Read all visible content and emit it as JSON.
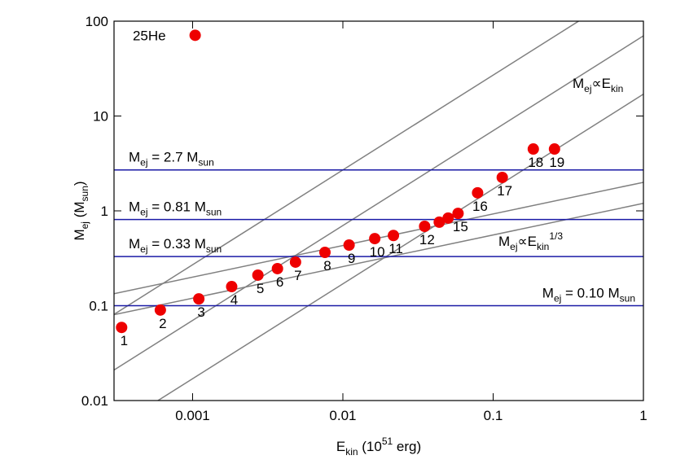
{
  "chart_data": {
    "type": "scatter",
    "log_x": true,
    "log_y": true,
    "xlim": [
      0.0003,
      1
    ],
    "ylim": [
      0.01,
      100
    ],
    "xticks": [
      0.001,
      0.01,
      0.1,
      1
    ],
    "yticks": [
      0.01,
      0.1,
      1,
      10,
      100
    ],
    "xlabel": [
      {
        "t": "E"
      },
      {
        "t": "kin",
        "sub": true
      },
      {
        "t": " (10"
      },
      {
        "t": "51",
        "sup": true
      },
      {
        "t": " erg)"
      }
    ],
    "ylabel": [
      {
        "t": "M"
      },
      {
        "t": "ej",
        "sub": true
      },
      {
        "t": " (M"
      },
      {
        "t": "sun",
        "sub": true
      },
      {
        "t": ")"
      }
    ],
    "color": "#ee0000",
    "x": [
      0.000337,
      0.00061,
      0.00104,
      0.0011,
      0.00182,
      0.00272,
      0.00367,
      0.00484,
      0.0076,
      0.011,
      0.0163,
      0.0217,
      0.035,
      0.0438,
      0.0502,
      0.0584,
      0.0788,
      0.115,
      0.185,
      0.256
    ],
    "values": [
      0.059,
      0.09,
      71,
      0.118,
      0.159,
      0.21,
      0.246,
      0.288,
      0.365,
      0.436,
      0.51,
      0.55,
      0.687,
      0.76,
      0.84,
      0.94,
      1.55,
      2.25,
      4.49,
      4.49
    ],
    "point_labels": [
      "1",
      "2",
      "25He",
      "3",
      "4",
      "5",
      "6",
      "7",
      "8",
      "9",
      "10",
      "11",
      "12",
      null,
      null,
      "15",
      "16",
      "17",
      "18",
      "19"
    ],
    "hline_color": "#1a1aa6",
    "hlines": [
      {
        "value": 2.7,
        "label_side": "left",
        "label": [
          {
            "t": "M"
          },
          {
            "t": "ej",
            "sub": true
          },
          {
            "t": " = 2.7 M"
          },
          {
            "t": "sun",
            "sub": true
          }
        ]
      },
      {
        "value": 0.81,
        "label_side": "left",
        "label": [
          {
            "t": "M"
          },
          {
            "t": "ej",
            "sub": true
          },
          {
            "t": " = 0.81 M"
          },
          {
            "t": "sun",
            "sub": true
          }
        ]
      },
      {
        "value": 0.33,
        "label_side": "left",
        "label": [
          {
            "t": "M"
          },
          {
            "t": "ej",
            "sub": true
          },
          {
            "t": " = 0.33 M"
          },
          {
            "t": "sun",
            "sub": true
          }
        ]
      },
      {
        "value": 0.1,
        "label_side": "right",
        "label": [
          {
            "t": "M"
          },
          {
            "t": "ej",
            "sub": true
          },
          {
            "t": " = 0.10 M"
          },
          {
            "t": "sun",
            "sub": true
          }
        ]
      }
    ],
    "line_color": "#808080",
    "power_laws": [
      {
        "coefficient": 270,
        "exponent": 1
      },
      {
        "coefficient": 70,
        "exponent": 1
      },
      {
        "coefficient": 17,
        "exponent": 1
      },
      {
        "coefficient": 2,
        "exponent": 0.3333
      },
      {
        "coefficient": 1.2,
        "exponent": 0.3333
      }
    ],
    "annotations": [
      [
        {
          "t": "M"
        },
        {
          "t": "ej",
          "sub": true
        },
        {
          "t": "∝E"
        },
        {
          "t": "kin",
          "sub": true
        }
      ],
      [
        {
          "t": "M"
        },
        {
          "t": "ej",
          "sub": true
        },
        {
          "t": "∝E"
        },
        {
          "t": "kin",
          "sub": true
        },
        {
          "t": "1/3",
          "sup": true
        }
      ]
    ]
  }
}
